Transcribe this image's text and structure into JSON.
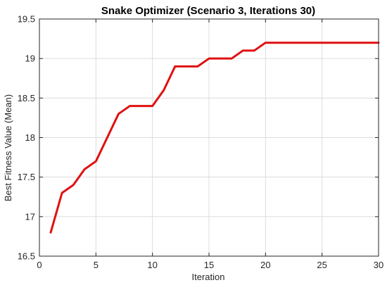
{
  "chart_data": {
    "type": "line",
    "title": "Snake Optimizer (Scenario 3, Iterations 30)",
    "xlabel": "Iteration",
    "ylabel": "Best Fitness Value (Mean)",
    "xlim": [
      0,
      30
    ],
    "ylim": [
      16.5,
      19.5
    ],
    "xticks": [
      0,
      5,
      10,
      15,
      20,
      25,
      30
    ],
    "yticks": [
      16.5,
      17,
      17.5,
      18,
      18.5,
      19,
      19.5
    ],
    "xtick_labels": [
      "0",
      "5",
      "10",
      "15",
      "20",
      "25",
      "30"
    ],
    "ytick_labels": [
      "16.5",
      "17",
      "17.5",
      "18",
      "18.5",
      "19",
      "19.5"
    ],
    "grid": true,
    "series": [
      {
        "color": "#e01010",
        "x": [
          1,
          2,
          3,
          4,
          5,
          6,
          7,
          8,
          9,
          10,
          11,
          12,
          13,
          14,
          15,
          16,
          17,
          18,
          19,
          20,
          21,
          22,
          23,
          24,
          25,
          26,
          27,
          28,
          29,
          30
        ],
        "values": [
          16.8,
          17.3,
          17.4,
          17.6,
          17.7,
          18.0,
          18.3,
          18.4,
          18.4,
          18.4,
          18.6,
          18.9,
          18.9,
          18.9,
          19.0,
          19.0,
          19.0,
          19.1,
          19.1,
          19.2,
          19.2,
          19.2,
          19.2,
          19.2,
          19.2,
          19.2,
          19.2,
          19.2,
          19.2,
          19.2
        ]
      }
    ]
  }
}
